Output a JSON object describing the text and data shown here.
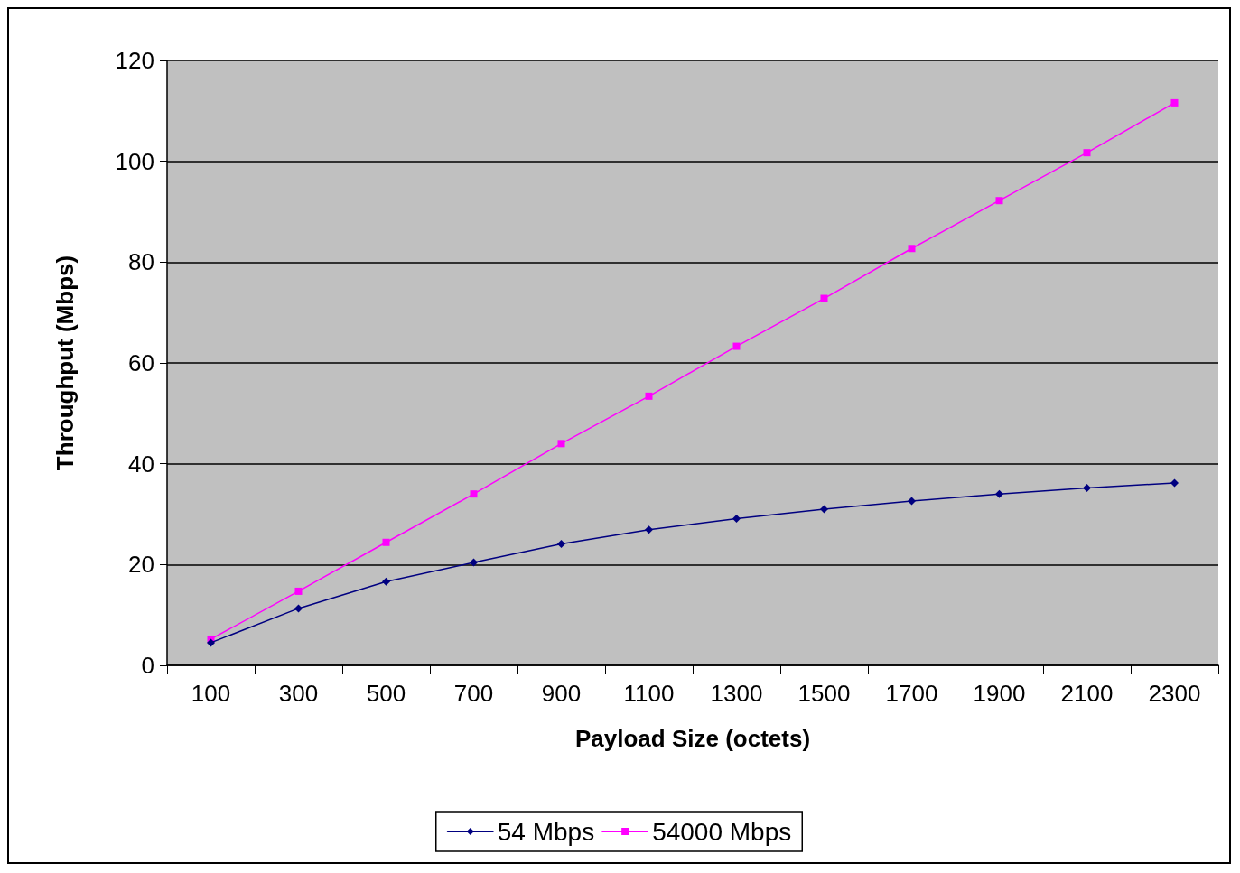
{
  "chart_data": {
    "type": "line",
    "xlabel": "Payload Size (octets)",
    "ylabel": "Throughput (Mbps)",
    "categories": [
      "100",
      "300",
      "500",
      "700",
      "900",
      "1100",
      "1300",
      "1500",
      "1700",
      "1900",
      "2100",
      "2300"
    ],
    "series": [
      {
        "name": "54 Mbps",
        "color": "#000080",
        "marker": "diamond",
        "values": [
          4.5,
          11.3,
          16.6,
          20.4,
          24.1,
          26.9,
          29.1,
          31.0,
          32.6,
          34.0,
          35.2,
          36.2
        ]
      },
      {
        "name": "54000 Mbps",
        "color": "#ff00ff",
        "marker": "square",
        "values": [
          5.2,
          14.7,
          24.4,
          34.0,
          44.0,
          53.4,
          63.3,
          72.8,
          82.7,
          92.2,
          101.7,
          111.6
        ]
      }
    ],
    "ylim": [
      0,
      120
    ],
    "yticks": [
      0,
      20,
      40,
      60,
      80,
      100,
      120
    ],
    "grid": "y",
    "legend": "bottom",
    "line_style": "solid"
  }
}
